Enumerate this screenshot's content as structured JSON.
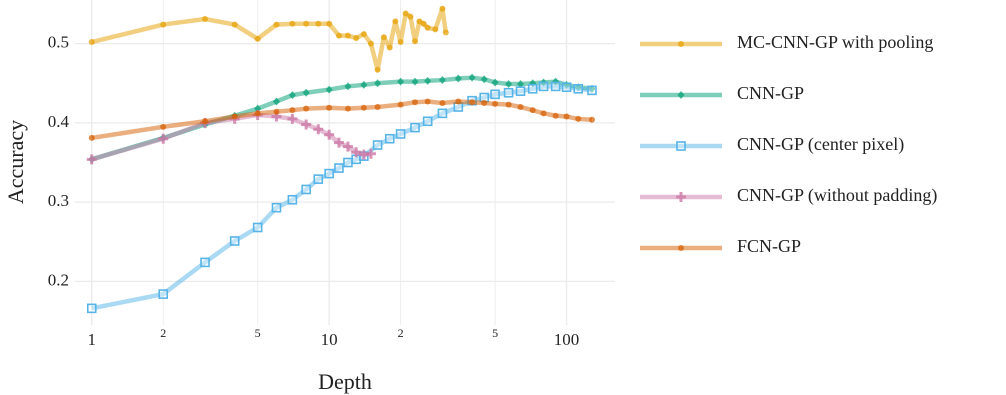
{
  "chart_data": {
    "type": "line",
    "x_label": "Depth",
    "y_label": "Accuracy",
    "xscale": "log",
    "grid": true,
    "xlim": [
      0.85,
      160
    ],
    "ylim": [
      0.145,
      0.555
    ],
    "xticks": [
      1,
      2,
      5,
      10,
      {
        "value": 20,
        "label": "2"
      },
      {
        "value": 50,
        "label": "5"
      },
      100
    ],
    "yticks": [
      0.2,
      0.3,
      0.4,
      0.5
    ],
    "legend": "right",
    "series": [
      {
        "name": "MC-CNN-GP with pooling",
        "color": "#E69F00",
        "marker": "circle",
        "x": [
          1,
          2,
          3,
          4,
          5,
          6,
          7,
          8,
          9,
          10,
          11,
          12,
          13,
          14,
          15,
          16,
          17,
          18,
          19,
          20,
          21,
          22,
          23,
          24,
          25,
          26,
          28,
          30,
          31
        ],
        "values": [
          0.502,
          0.524,
          0.531,
          0.524,
          0.506,
          0.524,
          0.525,
          0.525,
          0.525,
          0.525,
          0.51,
          0.51,
          0.507,
          0.512,
          0.5,
          0.467,
          0.508,
          0.495,
          0.528,
          0.502,
          0.538,
          0.534,
          0.503,
          0.528,
          0.525,
          0.52,
          0.518,
          0.544,
          0.514
        ]
      },
      {
        "name": "CNN-GP",
        "color": "#009E73",
        "marker": "diamond",
        "x": [
          1,
          2,
          3,
          4,
          5,
          6,
          7,
          8,
          10,
          12,
          14,
          16,
          20,
          23,
          26,
          30,
          35,
          40,
          45,
          50,
          57,
          64,
          72,
          80,
          90,
          100,
          112,
          128
        ],
        "values": [
          0.354,
          0.381,
          0.398,
          0.409,
          0.418,
          0.427,
          0.435,
          0.438,
          0.442,
          0.446,
          0.448,
          0.45,
          0.452,
          0.452,
          0.453,
          0.454,
          0.456,
          0.457,
          0.455,
          0.451,
          0.449,
          0.449,
          0.45,
          0.451,
          0.452,
          0.448,
          0.445,
          0.443
        ]
      },
      {
        "name": "CNN-GP (center pixel)",
        "color": "#56B4E9",
        "marker": "square",
        "x": [
          1,
          2,
          3,
          4,
          5,
          6,
          7,
          8,
          9,
          10,
          11,
          12,
          13,
          14,
          16,
          18,
          20,
          23,
          26,
          30,
          35,
          40,
          45,
          50,
          57,
          64,
          72,
          80,
          90,
          100,
          112,
          128
        ],
        "values": [
          0.166,
          0.184,
          0.224,
          0.251,
          0.268,
          0.293,
          0.303,
          0.316,
          0.329,
          0.336,
          0.343,
          0.35,
          0.354,
          0.358,
          0.372,
          0.38,
          0.386,
          0.394,
          0.402,
          0.412,
          0.42,
          0.428,
          0.432,
          0.436,
          0.438,
          0.44,
          0.443,
          0.446,
          0.446,
          0.445,
          0.443,
          0.441
        ]
      },
      {
        "name": "CNN-GP (without padding)",
        "color": "#CC79A7",
        "marker": "plus",
        "x": [
          1,
          2,
          3,
          4,
          5,
          6,
          7,
          8,
          9,
          10,
          11,
          12,
          13,
          14,
          15
        ],
        "values": [
          0.354,
          0.38,
          0.4,
          0.405,
          0.41,
          0.408,
          0.405,
          0.398,
          0.392,
          0.385,
          0.375,
          0.37,
          0.363,
          0.36,
          0.361
        ]
      },
      {
        "name": "FCN-GP",
        "color": "#D55E00",
        "marker": "circle",
        "x": [
          1,
          2,
          3,
          4,
          5,
          6,
          7,
          8,
          10,
          12,
          14,
          16,
          20,
          23,
          26,
          30,
          35,
          40,
          45,
          50,
          57,
          64,
          72,
          80,
          90,
          100,
          112,
          128
        ],
        "values": [
          0.381,
          0.395,
          0.402,
          0.408,
          0.412,
          0.414,
          0.416,
          0.418,
          0.419,
          0.418,
          0.419,
          0.42,
          0.423,
          0.426,
          0.427,
          0.425,
          0.427,
          0.426,
          0.425,
          0.424,
          0.423,
          0.42,
          0.416,
          0.412,
          0.409,
          0.408,
          0.405,
          0.404
        ]
      }
    ]
  }
}
